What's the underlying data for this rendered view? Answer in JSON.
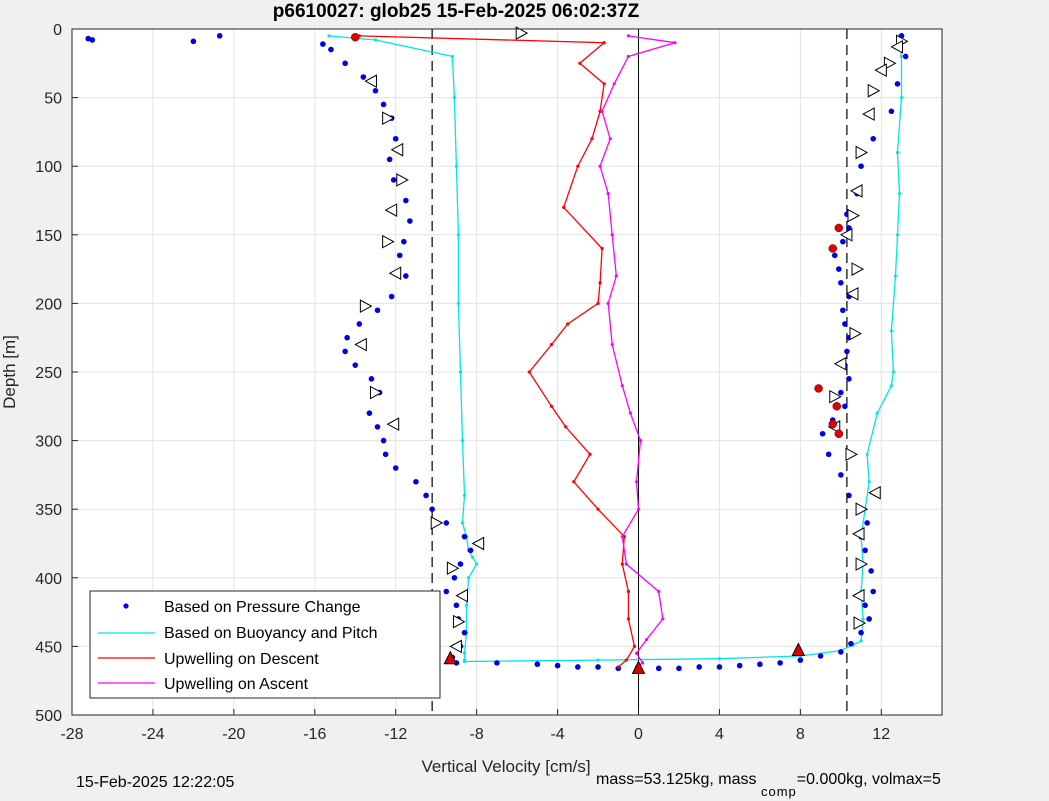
{
  "chart_data": {
    "type": "scatter",
    "title": "p6610027: glob25 15-Feb-2025 06:02:37Z",
    "xlabel": "Vertical Velocity [cm/s]",
    "ylabel": "Depth [m]",
    "xlim": [
      -28,
      15
    ],
    "ylim": [
      0,
      500
    ],
    "y_reversed": true,
    "grid": true,
    "xticks": [
      "-28",
      "-24",
      "-20",
      "-16",
      "-12",
      "-8",
      "-4",
      "0",
      "4",
      "8",
      "12"
    ],
    "xtick_values": [
      -28,
      -24,
      -20,
      -16,
      -12,
      -8,
      -4,
      0,
      4,
      8,
      12
    ],
    "yticks": [
      "0",
      "50",
      "100",
      "150",
      "200",
      "250",
      "300",
      "350",
      "400",
      "450",
      "500"
    ],
    "ytick_values": [
      0,
      50,
      100,
      150,
      200,
      250,
      300,
      350,
      400,
      450,
      500
    ],
    "legend": {
      "placement": "bottom-left",
      "entries": [
        "Based on Pressure Change",
        "Based on Buoyancy and Pitch",
        "Upwelling on Descent",
        "Upwelling on Ascent"
      ]
    },
    "colors": {
      "pressure": "#0000e6",
      "buoyancy": "#00e5e5",
      "descent": "#ff0000",
      "ascent": "#ff00ff",
      "reference": "#000000"
    },
    "reference_lines": {
      "zero_line_x": 0,
      "dashed_lines_x": [
        -10.2,
        10.3
      ]
    },
    "series": [
      {
        "name": "Based on Buoyancy and Pitch",
        "style": "line",
        "profiles": [
          {
            "x": [
              -15.3,
              -13.0,
              -9.2,
              -9.1,
              -9.0,
              -8.9,
              -8.9,
              -8.8,
              -8.7,
              -8.6,
              -8.7,
              -8.5,
              -8.4,
              -8.2,
              -8.0,
              -8.4,
              -8.5,
              -8.5,
              -8.6,
              -8.6
            ],
            "y": [
              5,
              8,
              20,
              50,
              100,
              150,
              200,
              250,
              300,
              340,
              360,
              370,
              380,
              385,
              390,
              400,
              420,
              440,
              455,
              460
            ]
          },
          {
            "x": [
              -8.6,
              -2.0,
              4.0,
              8.0,
              10.0,
              10.6,
              11.0
            ],
            "y": [
              461,
              460,
              459,
              457,
              453,
              449,
              446
            ]
          },
          {
            "x": [
              11.0,
              11.1,
              11.0,
              11.1,
              11.0,
              11.2,
              11.4,
              11.3,
              11.8,
              12.5,
              12.6,
              12.5,
              12.7,
              12.8,
              12.9,
              12.8,
              13.0,
              13.0,
              12.9
            ],
            "y": [
              446,
              430,
              410,
              390,
              370,
              350,
              330,
              310,
              280,
              260,
              250,
              220,
              180,
              150,
              120,
              90,
              50,
              20,
              5
            ]
          }
        ]
      },
      {
        "name": "Based on Pressure Change",
        "style": "points",
        "profiles": [
          {
            "x": [
              -15.2,
              -14.5,
              -13.6,
              -13.0,
              -12.6,
              -12.2,
              -12.0,
              -12.3,
              -12.1,
              -11.5,
              -11.3,
              -11.6,
              -11.8,
              -11.5,
              -12.2,
              -12.9,
              -13.8,
              -14.4,
              -14.5,
              -14.0,
              -13.2,
              -12.8,
              -13.3,
              -12.9,
              -12.6,
              -12.5,
              -12.0,
              -11.0,
              -10.5,
              -10.2,
              -9.5,
              -8.6,
              -8.3,
              -8.8,
              -9.1,
              -9.5,
              -9.0,
              -8.9,
              -8.6,
              -8.8,
              -9.2
            ],
            "y": [
              15,
              25,
              35,
              45,
              55,
              65,
              80,
              95,
              110,
              125,
              140,
              155,
              165,
              180,
              195,
              205,
              215,
              225,
              235,
              245,
              255,
              265,
              280,
              290,
              300,
              310,
              320,
              330,
              340,
              350,
              360,
              370,
              380,
              390,
              400,
              410,
              420,
              430,
              440,
              450,
              458
            ]
          },
          {
            "x": [
              -9.0,
              -7.0,
              -5.0,
              -4.0,
              -3.0,
              -2.0,
              -1.0,
              0.0,
              1.0,
              2.0,
              3.0,
              4.0,
              5.0,
              6.0,
              7.0,
              8.0,
              9.0,
              10.0
            ],
            "y": [
              462,
              462,
              463,
              464,
              465,
              465,
              466,
              466,
              466,
              466,
              465,
              465,
              464,
              463,
              462,
              460,
              457,
              454
            ]
          },
          {
            "x": [
              10.5,
              11.0,
              11.4,
              11.2,
              11.6,
              11.5,
              11.2,
              11.0,
              11.3,
              11.0,
              10.4,
              10.0,
              9.4,
              9.1,
              9.6,
              10.2,
              10.0,
              10.4,
              10.2,
              10.3,
              10.4,
              10.2,
              10.1,
              10.4,
              10.0,
              9.9,
              9.7,
              10.1,
              10.4,
              10.3,
              10.8,
              11.0,
              11.6,
              12.5,
              12.8,
              13.2,
              13.0
            ],
            "y": [
              448,
              440,
              430,
              420,
              410,
              395,
              380,
              370,
              360,
              350,
              340,
              325,
              310,
              295,
              285,
              275,
              265,
              255,
              245,
              235,
              225,
              215,
              205,
              195,
              185,
              175,
              165,
              155,
              145,
              135,
              120,
              100,
              80,
              60,
              40,
              20,
              5
            ]
          },
          {
            "x": [
              -27.2,
              -27.0,
              -22.0,
              -20.7,
              -15.6
            ],
            "y": [
              7,
              8,
              9,
              5,
              11
            ]
          }
        ]
      },
      {
        "name": "Upwelling on Descent",
        "style": "line",
        "x": [
          -13.8,
          -1.7,
          -2.9,
          -1.7,
          -1.9,
          -2.3,
          -3.0,
          -3.7,
          -1.8,
          -1.9,
          -2.0,
          -3.5,
          -4.3,
          -5.4,
          -4.3,
          -3.6,
          -2.4,
          -3.2,
          -2.0,
          -0.7,
          -0.8,
          -0.5,
          -0.5,
          -0.2,
          -0.6,
          -1.0
        ],
        "y": [
          5,
          10,
          25,
          40,
          60,
          80,
          100,
          130,
          160,
          185,
          200,
          215,
          230,
          250,
          275,
          290,
          310,
          330,
          350,
          370,
          390,
          410,
          430,
          450,
          460,
          465
        ]
      },
      {
        "name": "Upwelling on Ascent",
        "style": "line",
        "x": [
          -0.5,
          1.8,
          -0.5,
          -1.2,
          -1.8,
          -1.4,
          -1.9,
          -1.5,
          -1.3,
          -1.1,
          -1.5,
          -1.3,
          -0.8,
          -0.4,
          0.1,
          -0.1,
          0.0,
          -0.8,
          -0.6,
          1.0,
          1.2,
          0.4,
          -0.1,
          0.2,
          -0.1
        ],
        "y": [
          5,
          10,
          20,
          40,
          60,
          80,
          100,
          120,
          150,
          180,
          200,
          230,
          260,
          280,
          300,
          330,
          350,
          370,
          390,
          410,
          430,
          445,
          455,
          462,
          465
        ]
      }
    ],
    "markers": {
      "red_triangles": {
        "x": [
          -9.3,
          7.9,
          0.0
        ],
        "y": [
          459,
          453,
          466
        ]
      },
      "red_dots": {
        "x": [
          -14.0,
          9.9,
          9.6,
          8.9,
          9.8,
          9.6,
          9.9
        ],
        "y": [
          6,
          145,
          160,
          262,
          275,
          288,
          295
        ]
      },
      "open_triangles": {
        "x": [
          -5.8,
          -13.2,
          -12.4,
          -11.9,
          -11.7,
          -12.2,
          -12.4,
          -12.0,
          -13.5,
          -13.7,
          -13.0,
          -12.1,
          -10.0,
          -7.9,
          -9.2,
          -8.7,
          -8.9,
          -9.0,
          13.0,
          12.8,
          12.4,
          12.0,
          11.6,
          11.4,
          11.0,
          10.8,
          10.6,
          10.3,
          10.8,
          10.6,
          10.7,
          10.0,
          9.7,
          9.7,
          10.5,
          11.7,
          11.0,
          10.9,
          11.0,
          10.9,
          10.9
        ],
        "y": [
          3,
          38,
          65,
          88,
          110,
          132,
          155,
          178,
          202,
          230,
          265,
          288,
          360,
          375,
          393,
          413,
          432,
          450,
          9,
          13,
          25,
          30,
          45,
          62,
          90,
          118,
          136,
          150,
          175,
          193,
          222,
          244,
          268,
          290,
          310,
          338,
          350,
          368,
          390,
          413,
          433
        ]
      }
    }
  },
  "footer": {
    "timestamp": "15-Feb-2025 12:22:05",
    "mass_text": "mass=53.125kg, mass",
    "comp_sub": "comp",
    "mass_tail": "=0.000kg, volmax=5"
  }
}
